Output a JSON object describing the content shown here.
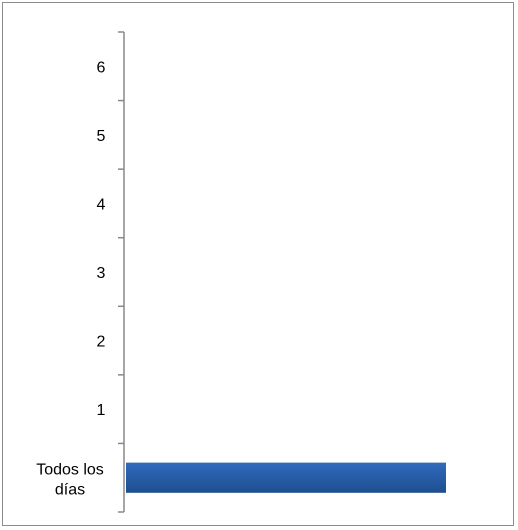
{
  "chart_data": {
    "type": "bar",
    "orientation": "horizontal",
    "title": "",
    "xlabel": "",
    "ylabel": "",
    "categories": [
      "Todos los días",
      "1",
      "2",
      "3",
      "4",
      "5",
      "6"
    ],
    "values": [
      1,
      0,
      0,
      0,
      0,
      0,
      0
    ],
    "xlim": [
      0,
      1
    ],
    "grid": false,
    "legend": "none",
    "bar_color": "#2f6bbd",
    "bar_color_dark": "#1f4e8f"
  }
}
